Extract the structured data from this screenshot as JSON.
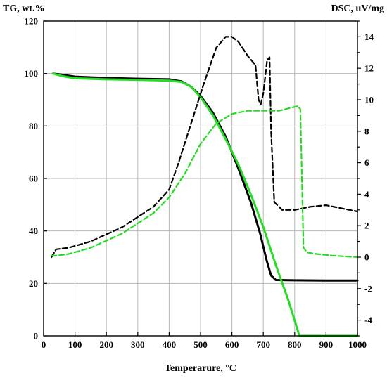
{
  "chart_data": {
    "type": "line",
    "xlabel": "Temperarure, °C",
    "ylabel_left": "TG, wt.%",
    "ylabel_right": "DSC, uV/mg",
    "xlim": [
      0,
      1000
    ],
    "ylim_left": [
      0,
      120
    ],
    "ylim_right": [
      -5,
      15
    ],
    "x_ticks": [
      "0",
      "100",
      "200",
      "300",
      "400",
      "500",
      "600",
      "700",
      "800",
      "900",
      "1000"
    ],
    "y_left_ticks": [
      "0",
      "20",
      "40",
      "60",
      "80",
      "100",
      "120"
    ],
    "y_right_ticks": [
      "-4",
      "-2",
      "0",
      "2",
      "4",
      "6",
      "8",
      "10",
      "12",
      "14"
    ],
    "grid": true,
    "legend": "none",
    "series": [
      {
        "axis": "left",
        "color": "#000000",
        "style": "solid",
        "x": [
          30,
          60,
          100,
          200,
          300,
          400,
          440,
          470,
          500,
          540,
          580,
          620,
          660,
          690,
          710,
          725,
          740,
          800,
          900,
          1000
        ],
        "y": [
          100,
          99.5,
          98.8,
          98.3,
          98.0,
          97.8,
          97.0,
          95.0,
          91.5,
          85.0,
          76.0,
          64.0,
          51.0,
          39.0,
          29.0,
          23.0,
          21.3,
          21.2,
          21.1,
          21.1
        ]
      },
      {
        "axis": "left",
        "color": "#22dd22",
        "style": "solid",
        "x": [
          30,
          60,
          100,
          200,
          300,
          400,
          440,
          470,
          500,
          540,
          580,
          620,
          660,
          700,
          740,
          780,
          815,
          900,
          1000
        ],
        "y": [
          100,
          99.0,
          98.2,
          97.8,
          97.6,
          97.3,
          96.8,
          95.0,
          91.0,
          84.0,
          75.0,
          65.5,
          54.0,
          41.5,
          27.0,
          13.5,
          0,
          0,
          0
        ]
      },
      {
        "axis": "right",
        "color": "#000000",
        "style": "dashed",
        "x": [
          25,
          40,
          80,
          150,
          250,
          350,
          400,
          430,
          470,
          510,
          550,
          580,
          600,
          620,
          650,
          675,
          685,
          692,
          700,
          712,
          720,
          725,
          735,
          760,
          800,
          850,
          900,
          950,
          1000
        ],
        "y": [
          0.0,
          0.5,
          0.6,
          1.0,
          1.9,
          3.2,
          4.3,
          6.0,
          8.5,
          11.0,
          13.3,
          14.0,
          14.0,
          13.7,
          12.8,
          12.2,
          10.0,
          9.7,
          10.4,
          12.5,
          12.7,
          8.0,
          3.5,
          3.0,
          3.0,
          3.2,
          3.3,
          3.1,
          2.9
        ]
      },
      {
        "axis": "right",
        "color": "#22dd22",
        "style": "dashed",
        "x": [
          25,
          40,
          80,
          150,
          250,
          350,
          400,
          450,
          500,
          550,
          600,
          650,
          700,
          750,
          790,
          810,
          818,
          822,
          828,
          840,
          870,
          920,
          1000
        ],
        "y": [
          0.1,
          0.1,
          0.2,
          0.6,
          1.5,
          2.8,
          3.8,
          5.3,
          7.2,
          8.5,
          9.1,
          9.3,
          9.3,
          9.3,
          9.5,
          9.6,
          9.4,
          6.0,
          0.6,
          0.3,
          0.2,
          0.1,
          0.0
        ]
      }
    ]
  }
}
